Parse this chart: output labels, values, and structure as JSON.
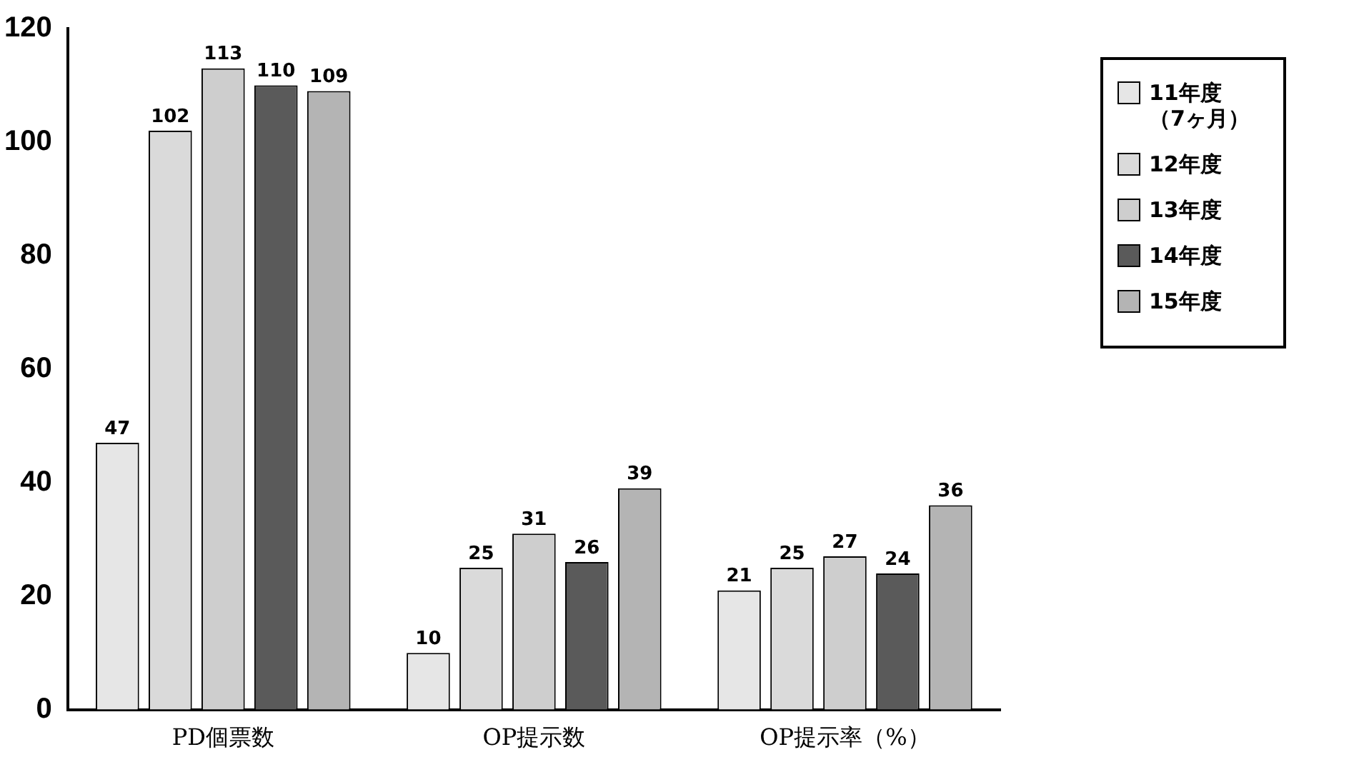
{
  "chart_data": {
    "type": "bar",
    "categories": [
      "PD個票数",
      "OP提示数",
      "OP提示率（%）"
    ],
    "series": [
      {
        "name": "11年度（7ヶ月）",
        "color": "#e6e6e6",
        "values": [
          47,
          10,
          21
        ]
      },
      {
        "name": "12年度",
        "color": "#dadada",
        "values": [
          102,
          25,
          25
        ]
      },
      {
        "name": "13年度",
        "color": "#cecece",
        "values": [
          113,
          31,
          27
        ]
      },
      {
        "name": "14年度",
        "color": "#5a5a5a",
        "values": [
          110,
          26,
          24
        ]
      },
      {
        "name": "15年度",
        "color": "#b4b4b4",
        "values": [
          109,
          39,
          36
        ]
      }
    ],
    "ylim": [
      0,
      120
    ],
    "yticks": [
      0,
      20,
      40,
      60,
      80,
      100,
      120
    ],
    "grid": false,
    "legend": "right",
    "data_labels": true
  }
}
